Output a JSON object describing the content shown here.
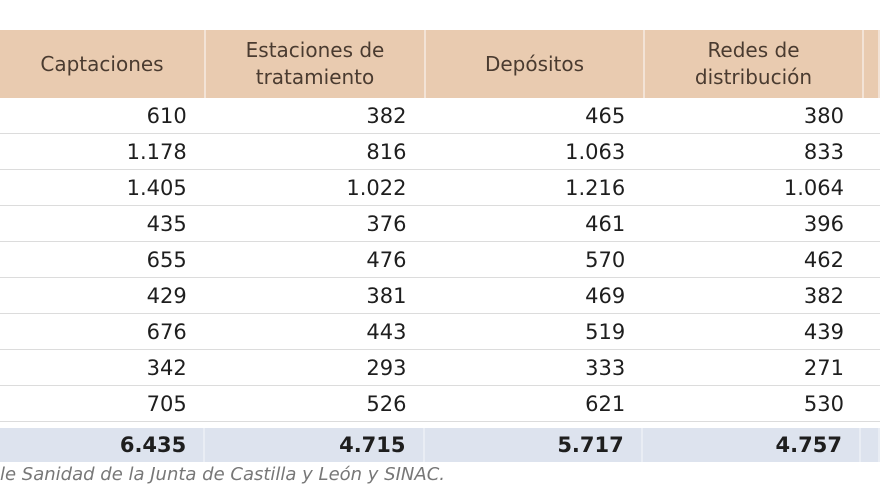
{
  "chart_data": {
    "type": "table",
    "columns": [
      "Captaciones",
      "Estaciones de tratamiento",
      "Depósitos",
      "Redes de distribución"
    ],
    "header_lines": [
      [
        "Captaciones"
      ],
      [
        "Estaciones de",
        "tratamiento"
      ],
      [
        "Depósitos"
      ],
      [
        "Redes de",
        "distribución"
      ]
    ],
    "rows": [
      [
        "610",
        "382",
        "465",
        "380"
      ],
      [
        "1.178",
        "816",
        "1.063",
        "833"
      ],
      [
        "1.405",
        "1.022",
        "1.216",
        "1.064"
      ],
      [
        "435",
        "376",
        "461",
        "396"
      ],
      [
        "655",
        "476",
        "570",
        "462"
      ],
      [
        "429",
        "381",
        "469",
        "382"
      ],
      [
        "676",
        "443",
        "519",
        "439"
      ],
      [
        "342",
        "293",
        "333",
        "271"
      ],
      [
        "705",
        "526",
        "621",
        "530"
      ]
    ],
    "totals": [
      "6.435",
      "4.715",
      "5.717",
      "4.757"
    ]
  },
  "source": "le Sanidad de la Junta de Castilla y León y SINAC.",
  "colors": {
    "header": "#e9cbb0",
    "total": "#dde3ee"
  }
}
